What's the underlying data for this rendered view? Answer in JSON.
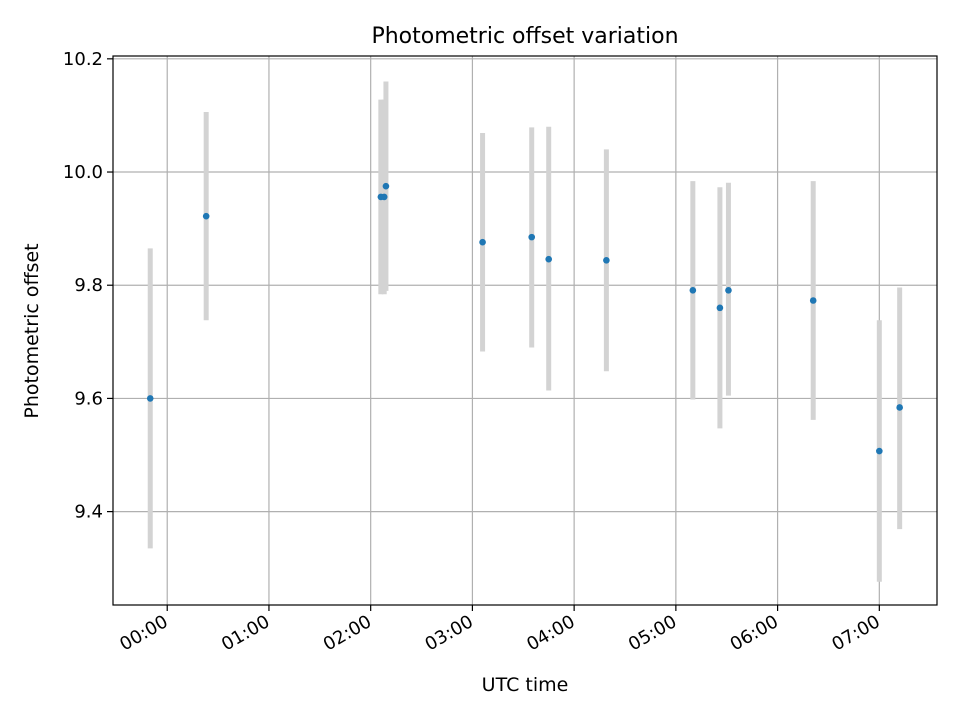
{
  "chart_data": {
    "type": "scatter",
    "title": "Photometric offset variation",
    "xlabel": "UTC time",
    "ylabel": "Photometric offset",
    "x_unit": "hours after 00:00 UTC",
    "xlim": [
      -0.533,
      7.567
    ],
    "ylim": [
      9.235,
      10.205
    ],
    "x_ticks": [
      {
        "value": 0,
        "label": "00:00"
      },
      {
        "value": 1,
        "label": "01:00"
      },
      {
        "value": 2,
        "label": "02:00"
      },
      {
        "value": 3,
        "label": "03:00"
      },
      {
        "value": 4,
        "label": "04:00"
      },
      {
        "value": 5,
        "label": "05:00"
      },
      {
        "value": 6,
        "label": "06:00"
      },
      {
        "value": 7,
        "label": "07:00"
      }
    ],
    "y_ticks": [
      {
        "value": 9.4,
        "label": "9.4"
      },
      {
        "value": 9.6,
        "label": "9.6"
      },
      {
        "value": 9.8,
        "label": "9.8"
      },
      {
        "value": 10.0,
        "label": "10.0"
      },
      {
        "value": 10.2,
        "label": "10.2"
      }
    ],
    "grid": true,
    "series": [
      {
        "name": "Photometric offset",
        "color": "#1f77b4",
        "error_color": "#d3d3d3",
        "points": [
          {
            "x": -0.167,
            "y": 9.6,
            "y_low": 9.335,
            "y_high": 9.865
          },
          {
            "x": 0.383,
            "y": 9.922,
            "y_low": 9.738,
            "y_high": 10.106
          },
          {
            "x": 2.1,
            "y": 9.956,
            "y_low": 9.784,
            "y_high": 10.128
          },
          {
            "x": 2.133,
            "y": 9.956,
            "y_low": 9.784,
            "y_high": 10.128
          },
          {
            "x": 2.15,
            "y": 9.975,
            "y_low": 9.79,
            "y_high": 10.16
          },
          {
            "x": 3.1,
            "y": 9.876,
            "y_low": 9.683,
            "y_high": 10.069
          },
          {
            "x": 3.583,
            "y": 9.885,
            "y_low": 9.69,
            "y_high": 10.079
          },
          {
            "x": 3.75,
            "y": 9.846,
            "y_low": 9.614,
            "y_high": 10.08
          },
          {
            "x": 4.317,
            "y": 9.844,
            "y_low": 9.648,
            "y_high": 10.04
          },
          {
            "x": 5.167,
            "y": 9.791,
            "y_low": 9.598,
            "y_high": 9.984
          },
          {
            "x": 5.433,
            "y": 9.76,
            "y_low": 9.547,
            "y_high": 9.973
          },
          {
            "x": 5.517,
            "y": 9.791,
            "y_low": 9.605,
            "y_high": 9.981
          },
          {
            "x": 6.35,
            "y": 9.773,
            "y_low": 9.562,
            "y_high": 9.984
          },
          {
            "x": 7.0,
            "y": 9.507,
            "y_low": 9.276,
            "y_high": 9.738
          },
          {
            "x": 7.2,
            "y": 9.584,
            "y_low": 9.369,
            "y_high": 9.796
          }
        ]
      }
    ]
  }
}
